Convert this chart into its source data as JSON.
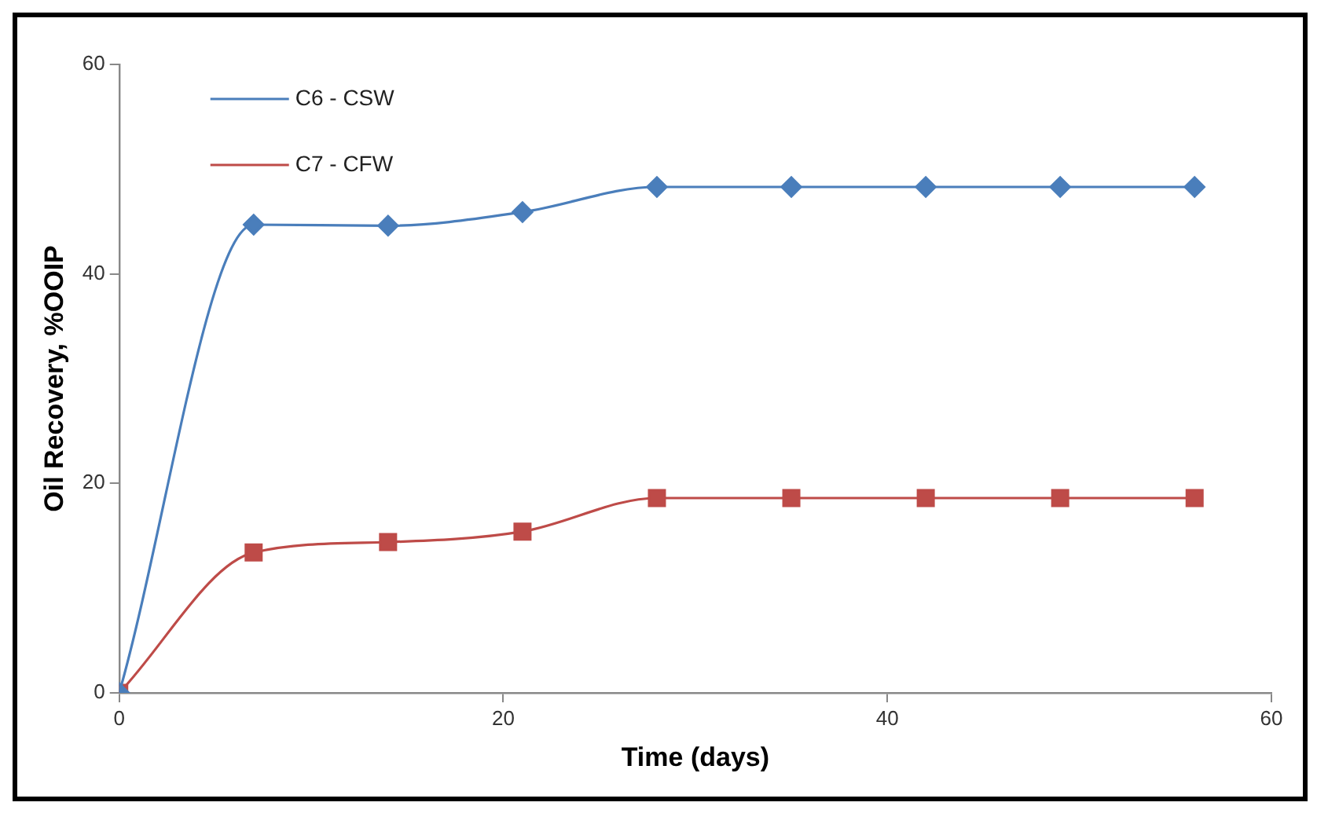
{
  "chart_data": {
    "type": "line",
    "xlabel": "Time (days)",
    "ylabel": "Oil Recovery, %OOIP",
    "x": [
      0,
      7,
      14,
      21,
      28,
      35,
      42,
      49,
      56
    ],
    "series": [
      {
        "name": "C6 - CSW",
        "color": "#4a7ebb",
        "marker": "diamond",
        "values": [
          0,
          44.7,
          44.6,
          45.9,
          48.3,
          48.3,
          48.3,
          48.3,
          48.3
        ]
      },
      {
        "name": "C7 - CFW",
        "color": "#be4b48",
        "marker": "square",
        "values": [
          0,
          13.4,
          14.4,
          15.4,
          18.6,
          18.6,
          18.6,
          18.6,
          18.6
        ]
      }
    ],
    "xlim": [
      0,
      60
    ],
    "xticks": [
      0,
      20,
      40,
      60
    ],
    "ylim": [
      0,
      60
    ],
    "yticks": [
      0,
      20,
      40,
      60
    ],
    "grid": false,
    "legend": "top left"
  }
}
